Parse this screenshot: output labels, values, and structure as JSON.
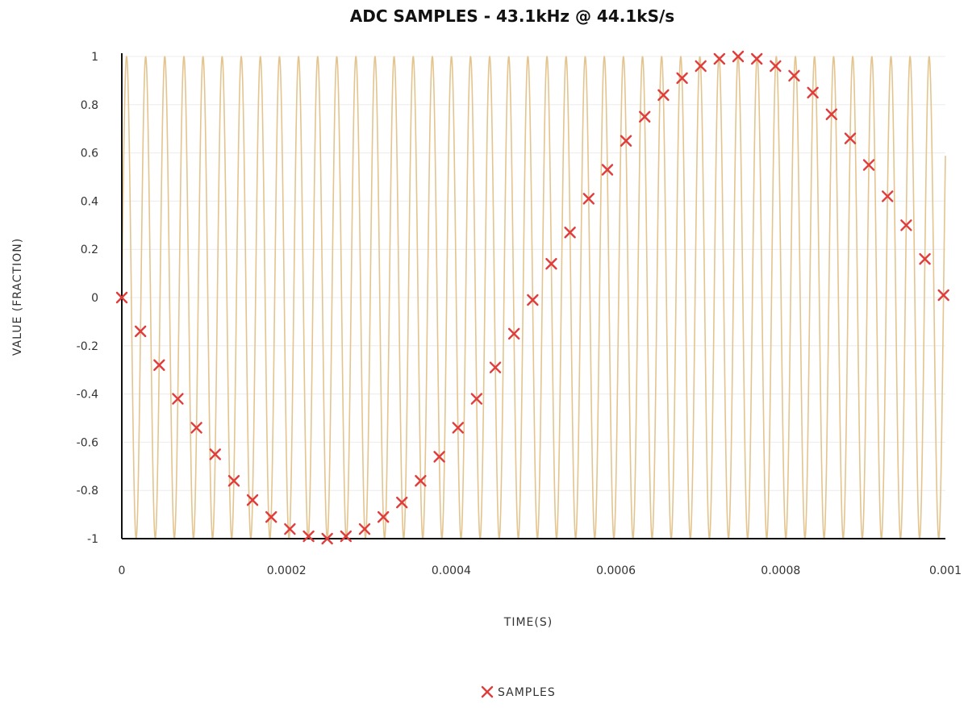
{
  "chart_data": {
    "type": "line",
    "title": "ADC SAMPLES - 43.1kHz @ 44.1kS/s",
    "xlabel": "TIME(S)",
    "ylabel": "VALUE (FRACTION)",
    "xlim": [
      0,
      0.001
    ],
    "ylim": [
      -1,
      1
    ],
    "x_ticks": [
      "0",
      "0.0002",
      "0.0004",
      "0.0006",
      "0.0008",
      "0.001"
    ],
    "y_ticks": [
      "1",
      "0.8",
      "0.6",
      "0.4",
      "0.2",
      "0",
      "-0.2",
      "-0.4",
      "-0.6",
      "-0.8",
      "-1"
    ],
    "grid": true,
    "legend_position": "bottom",
    "legend": [
      {
        "label": "SAMPLES",
        "marker": "x",
        "color": "#e03c3c"
      }
    ],
    "series": [
      {
        "kind": "line",
        "frequency_hz": 43100,
        "amplitude": 1,
        "color": "#e3c48e"
      },
      {
        "name": "SAMPLES",
        "kind": "scatter",
        "marker": "x",
        "color": "#e03c3c",
        "x": [
          0,
          2.27e-05,
          4.54e-05,
          6.8e-05,
          9.07e-05,
          0.0001134,
          0.0001361,
          0.0001587,
          0.0001814,
          0.0002041,
          0.0002268,
          0.0002494,
          0.0002721,
          0.0002948,
          0.0003175,
          0.0003401,
          0.0003628,
          0.0003855,
          0.0004082,
          0.0004308,
          0.0004535,
          0.0004762,
          0.0004989,
          0.0005215,
          0.0005442,
          0.0005669,
          0.0005896,
          0.0006122,
          0.0006349,
          0.0006576,
          0.0006803,
          0.0007029,
          0.0007256,
          0.0007483,
          0.000771,
          0.0007937,
          0.0008163,
          0.000839,
          0.0008617,
          0.0008844,
          0.000907,
          0.0009297,
          0.0009524,
          0.0009751,
          0.0009977
        ],
        "y": [
          0,
          -0.14,
          -0.28,
          -0.42,
          -0.54,
          -0.65,
          -0.76,
          -0.84,
          -0.91,
          -0.96,
          -0.99,
          -1.0,
          -0.99,
          -0.96,
          -0.91,
          -0.85,
          -0.76,
          -0.66,
          -0.54,
          -0.42,
          -0.29,
          -0.15,
          -0.01,
          0.14,
          0.27,
          0.41,
          0.53,
          0.65,
          0.75,
          0.84,
          0.91,
          0.96,
          0.99,
          1.0,
          0.99,
          0.96,
          0.92,
          0.85,
          0.76,
          0.66,
          0.55,
          0.42,
          0.3,
          0.16,
          0.01
        ]
      }
    ]
  }
}
